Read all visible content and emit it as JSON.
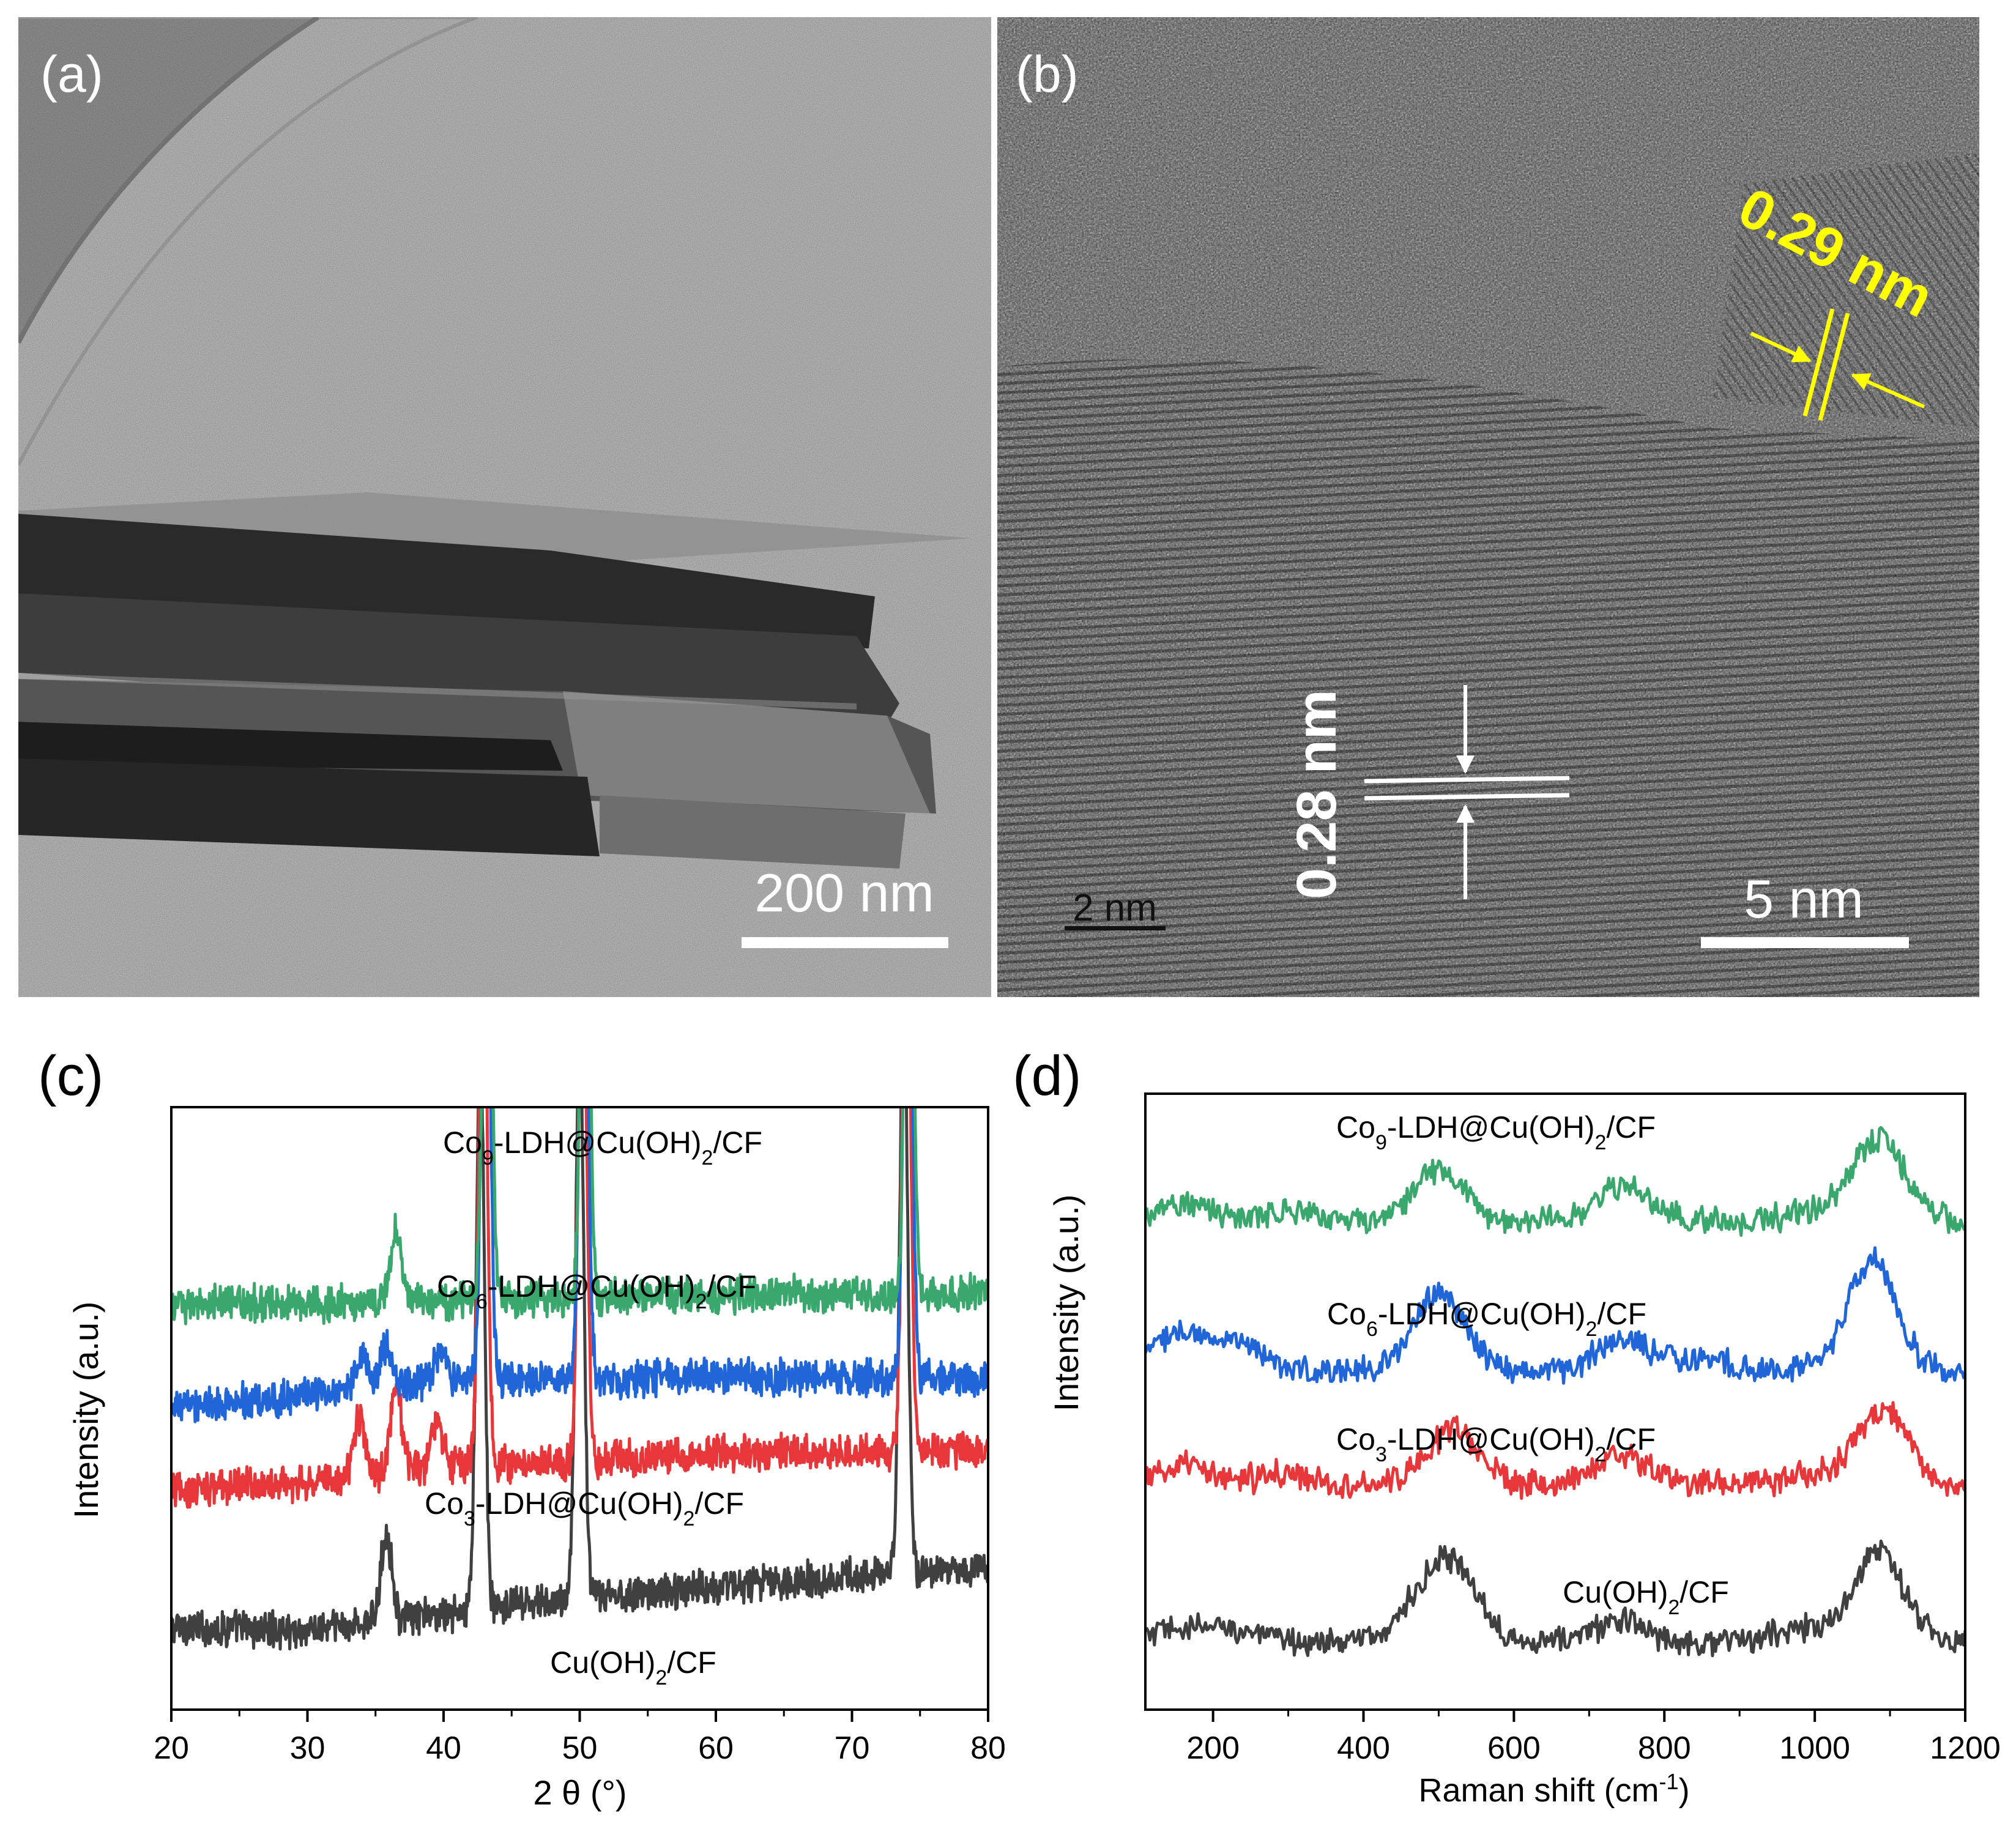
{
  "panels": {
    "a": {
      "label": "(a)",
      "scale_bar": "200 nm"
    },
    "b": {
      "label": "(b)",
      "scale_bar": "5 nm",
      "inset_scale_bar": "2 nm",
      "lattice_spacings": [
        "0.29 nm",
        "0.28 nm"
      ],
      "colors": {
        "spacing_1": "#ffff00",
        "spacing_2": "#ffffff"
      }
    },
    "c": {
      "label": "(c)"
    },
    "d": {
      "label": "(d)"
    }
  },
  "chart_data": [
    {
      "panel": "c",
      "type": "line",
      "xlabel": "2 θ (°)",
      "ylabel": "Intensity (a.u.)",
      "xlim": [
        20,
        80
      ],
      "xticks": [
        20,
        30,
        40,
        50,
        60,
        70,
        80
      ],
      "y_ticks_shown": false,
      "labels_placement": "inline next to each trace",
      "series": [
        {
          "name": "Cu(OH)2/CF",
          "label_main": "Cu(OH)",
          "label_sub": "2",
          "label_tail": "/CF",
          "color": "#404040",
          "baseline": [
            [
              20,
              1.3
            ],
            [
              30,
              1.25
            ],
            [
              40,
              1.5
            ],
            [
              50,
              1.75
            ],
            [
              60,
              1.95
            ],
            [
              70,
              2.1
            ],
            [
              80,
              2.25
            ]
          ],
          "peaks": [
            [
              35.8,
              1.4
            ],
            [
              42.7,
              9.0
            ],
            [
              50.0,
              9.0
            ],
            [
              73.8,
              9.0
            ]
          ]
        },
        {
          "name": "Co3-LDH@Cu(OH)2/CF",
          "label_main": "Co",
          "label_sub": "3",
          "label_tail": "-LDH@Cu(OH)",
          "label_sub2": "2",
          "label_tail2": "/CF",
          "color": "#e8373a",
          "baseline": [
            [
              20,
              3.45
            ],
            [
              30,
              3.6
            ],
            [
              40,
              3.85
            ],
            [
              50,
              3.9
            ],
            [
              60,
              4.05
            ],
            [
              70,
              4.05
            ],
            [
              80,
              4.1
            ]
          ],
          "peaks": [
            [
              33.8,
              0.9
            ],
            [
              36.5,
              1.3
            ],
            [
              39.5,
              0.7
            ],
            [
              42.9,
              9.0
            ],
            [
              50.2,
              9.0
            ],
            [
              74.0,
              9.0
            ]
          ]
        },
        {
          "name": "Co6-LDH@Cu(OH)2/CF",
          "label_main": "Co",
          "label_sub": "6",
          "label_tail": "-LDH@Cu(OH)",
          "label_sub2": "2",
          "label_tail2": "/CF",
          "color": "#2166d9",
          "baseline": [
            [
              20,
              4.75
            ],
            [
              30,
              4.95
            ],
            [
              40,
              5.2
            ],
            [
              50,
              5.2
            ],
            [
              60,
              5.25
            ],
            [
              70,
              5.25
            ],
            [
              80,
              5.25
            ]
          ],
          "peaks": [
            [
              34.0,
              0.6
            ],
            [
              35.8,
              0.7
            ],
            [
              39.8,
              0.5
            ],
            [
              43.1,
              9.0
            ],
            [
              50.3,
              9.0
            ],
            [
              74.1,
              9.0
            ]
          ]
        },
        {
          "name": "Co9-LDH@Cu(OH)2/CF",
          "label_main": "Co",
          "label_sub": "9",
          "label_tail": "-LDH@Cu(OH)",
          "label_sub2": "2",
          "label_tail2": "/CF",
          "color": "#3aa76d",
          "baseline": [
            [
              20,
              6.4
            ],
            [
              30,
              6.4
            ],
            [
              40,
              6.45
            ],
            [
              50,
              6.5
            ],
            [
              60,
              6.55
            ],
            [
              70,
              6.55
            ],
            [
              80,
              6.55
            ]
          ],
          "peaks": [
            [
              36.5,
              1.1
            ],
            [
              43.2,
              9.0
            ],
            [
              50.4,
              9.0
            ],
            [
              74.2,
              9.0
            ]
          ]
        }
      ]
    },
    {
      "panel": "d",
      "type": "line",
      "xlabel": "Raman shift (cm",
      "xlabel_sup": "-1",
      "xlabel_tail": ")",
      "ylabel": "Intensity (a.u.)",
      "xlim": [
        110,
        1200
      ],
      "xticks": [
        200,
        400,
        600,
        800,
        1000,
        1200
      ],
      "y_ticks_shown": false,
      "labels_placement": "inline next to each trace",
      "series": [
        {
          "name": "Cu(OH)2/CF",
          "label_main": "Cu(OH)",
          "label_sub": "2",
          "label_tail": "/CF",
          "color": "#404040",
          "baseline": [
            [
              110,
              1.0
            ],
            [
              600,
              1.0
            ],
            [
              1200,
              1.0
            ]
          ],
          "peaks": [
            [
              150,
              0.15
            ],
            [
              220,
              0.2
            ],
            [
              480,
              0.55
            ],
            [
              525,
              0.9
            ],
            [
              740,
              0.3
            ],
            [
              980,
              0.2
            ],
            [
              1085,
              1.3
            ]
          ]
        },
        {
          "name": "Co3-LDH@Cu(OH)2/CF",
          "label_main": "Co",
          "label_sub": "3",
          "label_tail": "-LDH@Cu(OH)",
          "label_sub2": "2",
          "label_tail2": "/CF",
          "color": "#e8373a",
          "baseline": [
            [
              110,
              3.3
            ],
            [
              600,
              3.3
            ],
            [
              1200,
              3.3
            ]
          ],
          "peaks": [
            [
              160,
              0.25
            ],
            [
              290,
              0.15
            ],
            [
              520,
              0.8
            ],
            [
              745,
              0.45
            ],
            [
              1000,
              0.15
            ],
            [
              1090,
              1.1
            ]
          ]
        },
        {
          "name": "Co6-LDH@Cu(OH)2/CF",
          "label_main": "Co",
          "label_sub": "6",
          "label_tail": "-LDH@Cu(OH)",
          "label_sub2": "2",
          "label_tail2": "/CF",
          "color": "#2166d9",
          "baseline": [
            [
              110,
              4.95
            ],
            [
              600,
              4.95
            ],
            [
              1200,
              4.95
            ]
          ],
          "peaks": [
            [
              150,
              0.55
            ],
            [
              230,
              0.4
            ],
            [
              500,
              1.15
            ],
            [
              745,
              0.5
            ],
            [
              850,
              0.2
            ],
            [
              1075,
              1.6
            ]
          ]
        },
        {
          "name": "Co9-LDH@Cu(OH)2/CF",
          "label_main": "Co",
          "label_sub": "9",
          "label_tail": "-LDH@Cu(OH)",
          "label_sub2": "2",
          "label_tail2": "/CF",
          "color": "#3aa76d",
          "baseline": [
            [
              110,
              7.15
            ],
            [
              600,
              7.15
            ],
            [
              1200,
              7.15
            ]
          ],
          "peaks": [
            [
              160,
              0.25
            ],
            [
              300,
              0.15
            ],
            [
              500,
              0.7
            ],
            [
              745,
              0.5
            ],
            [
              1000,
              0.15
            ],
            [
              1085,
              1.2
            ]
          ]
        }
      ]
    }
  ]
}
